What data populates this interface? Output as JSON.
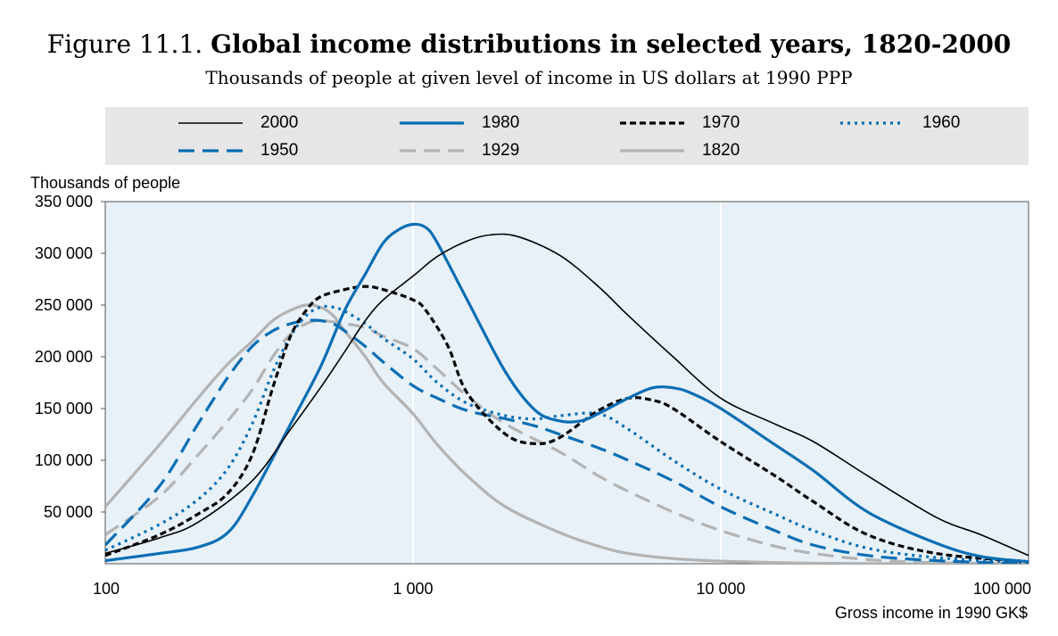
{
  "figure": {
    "label": "Figure 11.1.",
    "title": "Global income distributions in selected years, 1820-2000",
    "subtitle": "Thousands of people at given level of income in US dollars at 1990 PPP"
  },
  "chart_data": {
    "type": "line",
    "title": "Global income distributions in selected years, 1820-2000",
    "subtitle": "Thousands of people at given level of income in US dollars at 1990 PPP",
    "xlabel": "Gross income in 1990 GK$",
    "ylabel": "Thousands of people",
    "x_scale": "log",
    "xlim": [
      100,
      100000
    ],
    "ylim": [
      0,
      350000
    ],
    "x_ticks": [
      100,
      1000,
      10000,
      100000
    ],
    "x_tick_labels": [
      "100",
      "1 000",
      "10 000",
      "100 000"
    ],
    "y_ticks": [
      50000,
      100000,
      150000,
      200000,
      250000,
      300000,
      350000
    ],
    "y_tick_labels": [
      "50 000",
      "100 000",
      "150 000",
      "200 000",
      "250 000",
      "300 000",
      "350 000"
    ],
    "grid": "vertical",
    "legend_position": "top",
    "series": [
      {
        "name": "2000",
        "color": "#000000",
        "dash": "solid",
        "width": 1.6,
        "points": [
          [
            100,
            10000
          ],
          [
            150,
            25000
          ],
          [
            200,
            40000
          ],
          [
            300,
            80000
          ],
          [
            400,
            130000
          ],
          [
            500,
            170000
          ],
          [
            600,
            205000
          ],
          [
            700,
            235000
          ],
          [
            800,
            255000
          ],
          [
            1000,
            278000
          ],
          [
            1200,
            297000
          ],
          [
            1500,
            312000
          ],
          [
            1800,
            318000
          ],
          [
            2200,
            316000
          ],
          [
            3000,
            298000
          ],
          [
            4000,
            268000
          ],
          [
            5000,
            240000
          ],
          [
            7000,
            200000
          ],
          [
            10000,
            160000
          ],
          [
            15000,
            135000
          ],
          [
            20000,
            118000
          ],
          [
            30000,
            85000
          ],
          [
            50000,
            45000
          ],
          [
            70000,
            28000
          ],
          [
            100000,
            8000
          ]
        ]
      },
      {
        "name": "1980",
        "color": "#0a6eb4",
        "dash": "solid",
        "width": 3.2,
        "points": [
          [
            100,
            3000
          ],
          [
            150,
            10000
          ],
          [
            200,
            16000
          ],
          [
            250,
            30000
          ],
          [
            300,
            65000
          ],
          [
            400,
            135000
          ],
          [
            500,
            190000
          ],
          [
            600,
            245000
          ],
          [
            700,
            280000
          ],
          [
            800,
            310000
          ],
          [
            900,
            323000
          ],
          [
            1000,
            328000
          ],
          [
            1100,
            325000
          ],
          [
            1200,
            310000
          ],
          [
            1500,
            255000
          ],
          [
            2000,
            185000
          ],
          [
            2500,
            148000
          ],
          [
            3000,
            138000
          ],
          [
            3500,
            138000
          ],
          [
            4000,
            145000
          ],
          [
            5000,
            160000
          ],
          [
            6000,
            170000
          ],
          [
            7000,
            170000
          ],
          [
            8000,
            165000
          ],
          [
            10000,
            150000
          ],
          [
            15000,
            115000
          ],
          [
            20000,
            90000
          ],
          [
            30000,
            50000
          ],
          [
            50000,
            20000
          ],
          [
            70000,
            7000
          ],
          [
            100000,
            2000
          ]
        ]
      },
      {
        "name": "1970",
        "color": "#000000",
        "dash": "dash-short",
        "width": 3.2,
        "points": [
          [
            100,
            8000
          ],
          [
            150,
            28000
          ],
          [
            200,
            48000
          ],
          [
            250,
            68000
          ],
          [
            300,
            105000
          ],
          [
            350,
            170000
          ],
          [
            400,
            220000
          ],
          [
            450,
            245000
          ],
          [
            500,
            258000
          ],
          [
            600,
            265000
          ],
          [
            700,
            268000
          ],
          [
            800,
            265000
          ],
          [
            1000,
            255000
          ],
          [
            1100,
            245000
          ],
          [
            1300,
            210000
          ],
          [
            1500,
            165000
          ],
          [
            2000,
            125000
          ],
          [
            2500,
            116000
          ],
          [
            3000,
            122000
          ],
          [
            4000,
            148000
          ],
          [
            5000,
            160000
          ],
          [
            6000,
            158000
          ],
          [
            7000,
            150000
          ],
          [
            10000,
            118000
          ],
          [
            15000,
            85000
          ],
          [
            20000,
            60000
          ],
          [
            30000,
            28000
          ],
          [
            50000,
            10000
          ],
          [
            100000,
            2000
          ]
        ]
      },
      {
        "name": "1960",
        "color": "#0a6eb4",
        "dash": "dotted",
        "width": 3.2,
        "points": [
          [
            100,
            13000
          ],
          [
            150,
            38000
          ],
          [
            200,
            62000
          ],
          [
            250,
            92000
          ],
          [
            300,
            135000
          ],
          [
            350,
            185000
          ],
          [
            400,
            220000
          ],
          [
            450,
            240000
          ],
          [
            500,
            248000
          ],
          [
            550,
            248000
          ],
          [
            600,
            244000
          ],
          [
            700,
            232000
          ],
          [
            800,
            218000
          ],
          [
            1000,
            198000
          ],
          [
            1200,
            175000
          ],
          [
            1500,
            155000
          ],
          [
            2000,
            143000
          ],
          [
            2500,
            140000
          ],
          [
            3000,
            143000
          ],
          [
            4000,
            145000
          ],
          [
            5000,
            130000
          ],
          [
            7000,
            100000
          ],
          [
            10000,
            72000
          ],
          [
            15000,
            48000
          ],
          [
            20000,
            32000
          ],
          [
            30000,
            15000
          ],
          [
            50000,
            6000
          ],
          [
            100000,
            1000
          ]
        ]
      },
      {
        "name": "1950",
        "color": "#0a6eb4",
        "dash": "dash-long",
        "width": 3.2,
        "points": [
          [
            100,
            18000
          ],
          [
            150,
            75000
          ],
          [
            200,
            135000
          ],
          [
            250,
            180000
          ],
          [
            300,
            210000
          ],
          [
            350,
            225000
          ],
          [
            400,
            232000
          ],
          [
            450,
            235000
          ],
          [
            500,
            235000
          ],
          [
            550,
            232000
          ],
          [
            600,
            225000
          ],
          [
            700,
            210000
          ],
          [
            800,
            195000
          ],
          [
            1000,
            172000
          ],
          [
            1200,
            160000
          ],
          [
            1500,
            148000
          ],
          [
            2000,
            140000
          ],
          [
            2500,
            133000
          ],
          [
            3000,
            125000
          ],
          [
            4000,
            112000
          ],
          [
            5000,
            100000
          ],
          [
            7000,
            80000
          ],
          [
            10000,
            55000
          ],
          [
            15000,
            32000
          ],
          [
            20000,
            18000
          ],
          [
            30000,
            8000
          ],
          [
            50000,
            3000
          ],
          [
            100000,
            0
          ]
        ]
      },
      {
        "name": "1929",
        "color": "#b3b3b3",
        "dash": "dash-long",
        "width": 3.2,
        "points": [
          [
            100,
            28000
          ],
          [
            150,
            65000
          ],
          [
            200,
            105000
          ],
          [
            250,
            138000
          ],
          [
            300,
            168000
          ],
          [
            350,
            200000
          ],
          [
            400,
            222000
          ],
          [
            450,
            232000
          ],
          [
            500,
            235000
          ],
          [
            600,
            232000
          ],
          [
            700,
            228000
          ],
          [
            800,
            220000
          ],
          [
            1000,
            208000
          ],
          [
            1200,
            188000
          ],
          [
            1500,
            162000
          ],
          [
            2000,
            135000
          ],
          [
            3000,
            108000
          ],
          [
            4000,
            85000
          ],
          [
            5000,
            70000
          ],
          [
            7000,
            50000
          ],
          [
            10000,
            32000
          ],
          [
            15000,
            17000
          ],
          [
            20000,
            10000
          ],
          [
            30000,
            4000
          ],
          [
            50000,
            1000
          ],
          [
            100000,
            0
          ]
        ]
      },
      {
        "name": "1820",
        "color": "#b3b3b3",
        "dash": "solid",
        "width": 3.2,
        "points": [
          [
            100,
            55000
          ],
          [
            150,
            115000
          ],
          [
            200,
            160000
          ],
          [
            250,
            193000
          ],
          [
            300,
            215000
          ],
          [
            350,
            235000
          ],
          [
            400,
            245000
          ],
          [
            450,
            250000
          ],
          [
            500,
            248000
          ],
          [
            550,
            240000
          ],
          [
            600,
            225000
          ],
          [
            700,
            200000
          ],
          [
            800,
            175000
          ],
          [
            1000,
            145000
          ],
          [
            1200,
            115000
          ],
          [
            1500,
            85000
          ],
          [
            2000,
            55000
          ],
          [
            3000,
            30000
          ],
          [
            4000,
            17000
          ],
          [
            5000,
            10000
          ],
          [
            7000,
            5000
          ],
          [
            10000,
            2500
          ],
          [
            20000,
            500
          ],
          [
            50000,
            0
          ],
          [
            100000,
            0
          ]
        ]
      }
    ]
  }
}
